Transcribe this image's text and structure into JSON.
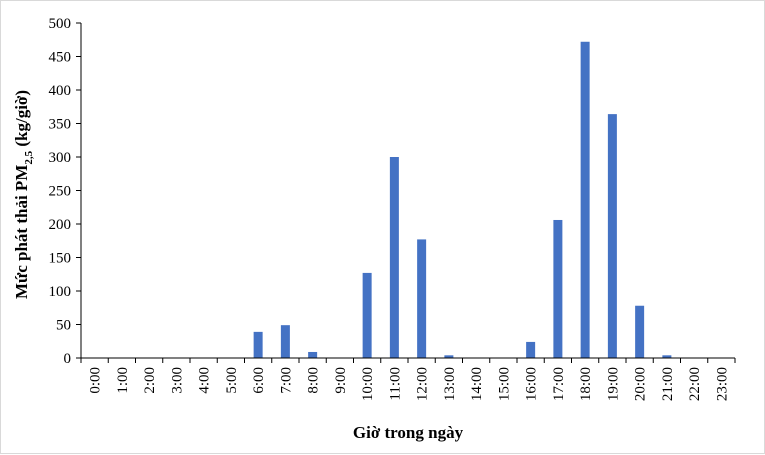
{
  "chart_data": {
    "type": "bar",
    "title": "",
    "xlabel": "Giờ trong ngày",
    "ylabel": {
      "prefix": "Mức phát thải  PM",
      "subscript": "2,5",
      "suffix": " (kg/giờ)"
    },
    "ylim": [
      0,
      500
    ],
    "yticks": [
      0,
      50,
      100,
      150,
      200,
      250,
      300,
      350,
      400,
      450,
      500
    ],
    "grid": false,
    "legend": "none",
    "bar_color": "#4472c4",
    "categories": [
      "0:00",
      "1:00",
      "2:00",
      "3:00",
      "4:00",
      "5:00",
      "6:00",
      "7:00",
      "8:00",
      "9:00",
      "10:00",
      "11:00",
      "12:00",
      "13:00",
      "14:00",
      "15:00",
      "16:00",
      "17:00",
      "18:00",
      "19:00",
      "20:00",
      "21:00",
      "22:00",
      "23:00"
    ],
    "values": [
      0,
      0,
      0,
      0,
      0,
      0,
      39,
      49,
      9,
      0,
      127,
      300,
      177,
      4,
      0,
      0,
      24,
      206,
      472,
      364,
      78,
      4,
      0,
      0
    ]
  }
}
